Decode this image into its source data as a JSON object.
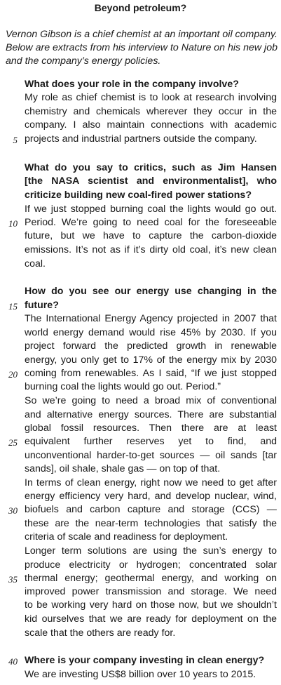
{
  "title": "Beyond petroleum?",
  "intro": "Vernon Gibson is a chief chemist at an important oil company. Below are extracts from his interview to Nature on his new job and the company’s energy policies.",
  "line_numbers": [
    "5",
    "10",
    "15",
    "20",
    "25",
    "30",
    "35",
    "40"
  ],
  "lines": [
    {
      "text": "What does your role in the company involve?",
      "kind": "q",
      "last": true
    },
    {
      "text": "My role as chief chemist is to look at research involving",
      "kind": "a",
      "last": false
    },
    {
      "text": "chemistry and chemicals wherever they occur in the",
      "kind": "a",
      "last": false
    },
    {
      "text": "company. I also maintain connections with academic",
      "kind": "a",
      "last": false
    },
    {
      "text": "projects and industrial partners outside the company.",
      "kind": "a",
      "last": true
    },
    {
      "text": "What do you say to critics, such as Jim Hansen",
      "kind": "q",
      "last": false
    },
    {
      "text": "[the NASA scientist and environmentalist], who",
      "kind": "q",
      "last": false
    },
    {
      "text": "criticize building new coal-fired power stations?",
      "kind": "q",
      "last": true
    },
    {
      "text": "If we just stopped burning coal the lights would go out.",
      "kind": "a",
      "last": false
    },
    {
      "text": "Period. We’re going to need coal for the foreseeable",
      "kind": "a",
      "last": false
    },
    {
      "text": "future, but we have to capture the carbon-dioxide",
      "kind": "a",
      "last": false
    },
    {
      "text": "emissions. It’s not as if it’s dirty old coal, it’s new clean",
      "kind": "a",
      "last": false
    },
    {
      "text": "coal.",
      "kind": "a",
      "last": true
    },
    {
      "text": "How do you see our energy use changing in the",
      "kind": "q",
      "last": false
    },
    {
      "text": "future?",
      "kind": "q",
      "last": true
    },
    {
      "text": "The International Energy Agency projected in 2007 that",
      "kind": "a",
      "last": false
    },
    {
      "text": "world energy demand would rise 45% by 2030. If you",
      "kind": "a",
      "last": false
    },
    {
      "text": "project forward the predicted growth in renewable",
      "kind": "a",
      "last": false
    },
    {
      "text": "energy, you only get to 17% of the energy mix by 2030",
      "kind": "a",
      "last": false
    },
    {
      "text": "coming from renewables. As I said, “If we just stopped",
      "kind": "a",
      "last": false
    },
    {
      "text": "burning coal the lights would go out. Period.”",
      "kind": "a",
      "last": true
    },
    {
      "text": "So we’re going to need a broad mix of conventional",
      "kind": "a",
      "last": false
    },
    {
      "text": "and alternative energy sources. There are substantial",
      "kind": "a",
      "last": false
    },
    {
      "text": "global fossil resources. Then there are at least",
      "kind": "a",
      "last": false
    },
    {
      "text": "equivalent further reserves yet to find, and",
      "kind": "a",
      "last": false
    },
    {
      "text": "unconventional harder-to-get sources — oil sands [tar",
      "kind": "a",
      "last": false
    },
    {
      "text": "sands], oil shale, shale gas — on top of that.",
      "kind": "a",
      "last": true
    },
    {
      "text": "In terms of clean energy, right now we need to get after",
      "kind": "a",
      "last": false
    },
    {
      "text": "energy efficiency very hard, and develop nuclear, wind,",
      "kind": "a",
      "last": false
    },
    {
      "text": "biofuels and carbon capture and storage (CCS) —",
      "kind": "a",
      "last": false
    },
    {
      "text": "these are the near-term technologies that satisfy the",
      "kind": "a",
      "last": false
    },
    {
      "text": "criteria of scale and readiness for deployment.",
      "kind": "a",
      "last": true
    },
    {
      "text": "Longer term solutions are using the sun’s energy to",
      "kind": "a",
      "last": false
    },
    {
      "text": "produce electricity or hydrogen; concentrated solar",
      "kind": "a",
      "last": false
    },
    {
      "text": "thermal energy; geothermal energy, and working on",
      "kind": "a",
      "last": false
    },
    {
      "text": "improved power transmission and storage. We need",
      "kind": "a",
      "last": false
    },
    {
      "text": "to be working very hard on those now, but we shouldn’t",
      "kind": "a",
      "last": false
    },
    {
      "text": "kid ourselves that we are ready for deployment on the",
      "kind": "a",
      "last": false
    },
    {
      "text": "scale that the others are ready for.",
      "kind": "a",
      "last": true
    },
    {
      "text": "Where is your company investing in clean energy?",
      "kind": "q",
      "last": true
    },
    {
      "text": "We are investing US$8 billion over 10 years to 2015.",
      "kind": "a",
      "last": true
    }
  ]
}
